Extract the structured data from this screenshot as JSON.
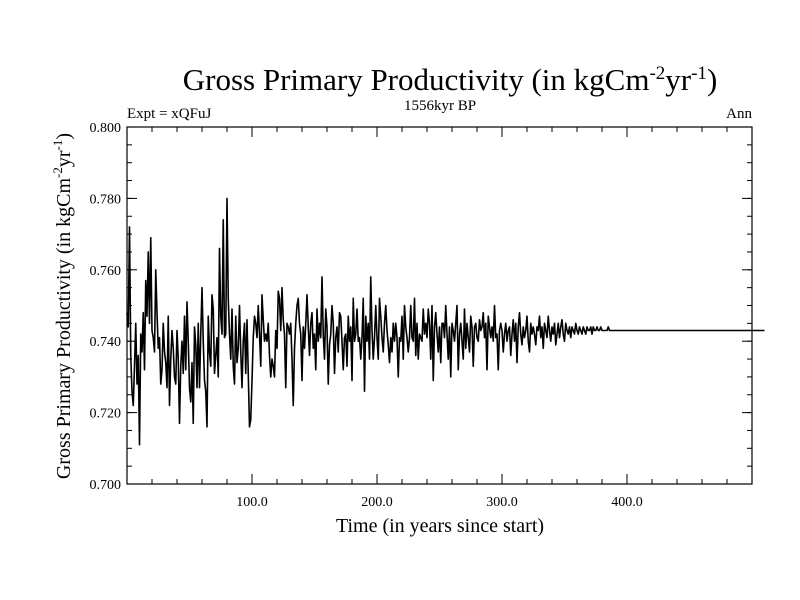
{
  "chart_data": {
    "type": "line",
    "title": {
      "main": "Gross Primary Productivity (in kgCm",
      "sup1": "-2",
      "mid": "yr",
      "sup2": "-1",
      "end": ")"
    },
    "left_label": "Expt = xQFuJ",
    "center_label": "1556kyr BP",
    "right_label": "Ann",
    "xlabel": "Time (in years since start)",
    "ylabel": {
      "main": "Gross Primary Productivity (in kgCm",
      "sup1": "-2",
      "mid": "yr",
      "sup2": "-1",
      "end": ")"
    },
    "xlim": [
      0,
      500
    ],
    "ylim": [
      0.7,
      0.8
    ],
    "x_ticks": [
      100,
      200,
      300,
      400
    ],
    "x_tick_labels": [
      "100.0",
      "200.0",
      "300.0",
      "400.0"
    ],
    "y_ticks": [
      0.7,
      0.72,
      0.74,
      0.76,
      0.78,
      0.8
    ],
    "y_tick_labels": [
      "0.700",
      "0.720",
      "0.740",
      "0.760",
      "0.780",
      "0.800"
    ],
    "series": [
      {
        "name": "Gross Primary Productivity",
        "x_start": 0,
        "x_step": 1,
        "values": [
          0.748,
          0.744,
          0.772,
          0.736,
          0.726,
          0.722,
          0.733,
          0.745,
          0.728,
          0.736,
          0.711,
          0.742,
          0.737,
          0.748,
          0.732,
          0.757,
          0.747,
          0.765,
          0.745,
          0.769,
          0.743,
          0.741,
          0.737,
          0.76,
          0.748,
          0.738,
          0.741,
          0.728,
          0.732,
          0.745,
          0.737,
          0.734,
          0.727,
          0.747,
          0.722,
          0.735,
          0.743,
          0.738,
          0.73,
          0.728,
          0.743,
          0.735,
          0.717,
          0.733,
          0.74,
          0.731,
          0.747,
          0.732,
          0.751,
          0.74,
          0.727,
          0.723,
          0.734,
          0.717,
          0.744,
          0.739,
          0.727,
          0.745,
          0.727,
          0.742,
          0.755,
          0.74,
          0.729,
          0.726,
          0.716,
          0.747,
          0.737,
          0.733,
          0.753,
          0.749,
          0.731,
          0.736,
          0.741,
          0.73,
          0.766,
          0.747,
          0.742,
          0.774,
          0.741,
          0.742,
          0.78,
          0.752,
          0.742,
          0.735,
          0.749,
          0.733,
          0.728,
          0.747,
          0.734,
          0.738,
          0.75,
          0.737,
          0.727,
          0.74,
          0.745,
          0.731,
          0.746,
          0.731,
          0.716,
          0.718,
          0.729,
          0.741,
          0.747,
          0.745,
          0.741,
          0.75,
          0.742,
          0.733,
          0.753,
          0.746,
          0.74,
          0.742,
          0.74,
          0.745,
          0.736,
          0.73,
          0.735,
          0.733,
          0.73,
          0.743,
          0.738,
          0.754,
          0.752,
          0.743,
          0.755,
          0.746,
          0.742,
          0.727,
          0.745,
          0.744,
          0.742,
          0.745,
          0.735,
          0.722,
          0.738,
          0.745,
          0.75,
          0.752,
          0.745,
          0.742,
          0.729,
          0.744,
          0.738,
          0.745,
          0.753,
          0.744,
          0.736,
          0.745,
          0.748,
          0.738,
          0.742,
          0.732,
          0.749,
          0.74,
          0.745,
          0.741,
          0.758,
          0.742,
          0.735,
          0.749,
          0.744,
          0.728,
          0.739,
          0.742,
          0.75,
          0.745,
          0.731,
          0.741,
          0.744,
          0.737,
          0.748,
          0.747,
          0.74,
          0.732,
          0.741,
          0.742,
          0.733,
          0.747,
          0.74,
          0.744,
          0.729,
          0.752,
          0.74,
          0.742,
          0.749,
          0.74,
          0.741,
          0.735,
          0.741,
          0.752,
          0.726,
          0.747,
          0.74,
          0.745,
          0.735,
          0.758,
          0.743,
          0.735,
          0.741,
          0.75,
          0.741,
          0.735,
          0.752,
          0.747,
          0.741,
          0.737,
          0.745,
          0.75,
          0.743,
          0.739,
          0.734,
          0.741,
          0.737,
          0.745,
          0.74,
          0.745,
          0.741,
          0.73,
          0.741,
          0.74,
          0.747,
          0.735,
          0.75,
          0.744,
          0.741,
          0.737,
          0.741,
          0.75,
          0.741,
          0.74,
          0.752,
          0.736,
          0.745,
          0.735,
          0.742,
          0.741,
          0.74,
          0.749,
          0.742,
          0.745,
          0.741,
          0.749,
          0.745,
          0.735,
          0.75,
          0.729,
          0.744,
          0.748,
          0.742,
          0.737,
          0.744,
          0.734,
          0.745,
          0.745,
          0.741,
          0.75,
          0.742,
          0.735,
          0.744,
          0.73,
          0.745,
          0.743,
          0.74,
          0.745,
          0.75,
          0.732,
          0.742,
          0.745,
          0.74,
          0.735,
          0.749,
          0.738,
          0.745,
          0.741,
          0.737,
          0.747,
          0.744,
          0.733,
          0.744,
          0.745,
          0.741,
          0.74,
          0.746,
          0.743,
          0.744,
          0.748,
          0.741,
          0.745,
          0.732,
          0.747,
          0.744,
          0.741,
          0.744,
          0.74,
          0.75,
          0.741,
          0.742,
          0.732,
          0.743,
          0.745,
          0.743,
          0.737,
          0.742,
          0.745,
          0.74,
          0.743,
          0.744,
          0.736,
          0.742,
          0.746,
          0.74,
          0.745,
          0.734,
          0.744,
          0.748,
          0.742,
          0.739,
          0.744,
          0.741,
          0.743,
          0.747,
          0.74,
          0.737,
          0.745,
          0.742,
          0.744,
          0.742,
          0.739,
          0.744,
          0.743,
          0.747,
          0.741,
          0.744,
          0.738,
          0.745,
          0.743,
          0.741,
          0.747,
          0.743,
          0.74,
          0.744,
          0.742,
          0.745,
          0.739,
          0.742,
          0.745,
          0.741,
          0.744,
          0.746,
          0.742,
          0.74,
          0.745,
          0.743,
          0.742,
          0.744,
          0.741,
          0.744,
          0.743,
          0.742,
          0.745,
          0.743,
          0.742,
          0.744,
          0.743,
          0.742,
          0.744,
          0.743,
          0.742,
          0.744,
          0.743,
          0.743,
          0.744,
          0.742,
          0.744,
          0.743,
          0.743,
          0.744,
          0.743,
          0.743,
          0.744,
          0.743,
          0.743,
          0.743,
          0.743,
          0.743,
          0.744,
          0.743,
          0.743,
          0.743,
          0.743,
          0.743,
          0.743,
          0.743,
          0.743,
          0.743,
          0.743,
          0.743,
          0.743,
          0.743,
          0.743,
          0.743,
          0.743,
          0.743,
          0.743,
          0.743,
          0.743,
          0.743,
          0.743,
          0.743,
          0.743,
          0.743,
          0.743,
          0.743,
          0.743,
          0.743,
          0.743,
          0.743,
          0.743,
          0.743,
          0.743,
          0.743,
          0.743,
          0.743,
          0.743,
          0.743,
          0.743,
          0.743,
          0.743,
          0.743,
          0.743,
          0.743,
          0.743,
          0.743,
          0.743,
          0.743,
          0.743,
          0.743,
          0.743,
          0.743,
          0.743,
          0.743,
          0.743,
          0.743,
          0.743,
          0.743,
          0.743,
          0.743,
          0.743,
          0.743,
          0.743,
          0.743,
          0.743,
          0.743,
          0.743,
          0.743,
          0.743,
          0.743,
          0.743,
          0.743,
          0.743,
          0.743,
          0.743,
          0.743,
          0.743,
          0.743,
          0.743,
          0.743,
          0.743,
          0.743,
          0.743,
          0.743,
          0.743,
          0.743,
          0.743,
          0.743,
          0.743,
          0.743,
          0.743,
          0.743,
          0.743,
          0.743,
          0.743,
          0.743,
          0.743,
          0.743,
          0.743,
          0.743,
          0.743,
          0.743,
          0.743,
          0.743,
          0.743,
          0.743,
          0.743,
          0.743,
          0.743,
          0.743,
          0.743,
          0.743,
          0.743,
          0.743,
          0.743,
          0.743,
          0.743,
          0.743,
          0.743,
          0.743,
          0.743,
          0.743,
          0.743,
          0.743
        ]
      }
    ],
    "line_color": "#000000"
  }
}
